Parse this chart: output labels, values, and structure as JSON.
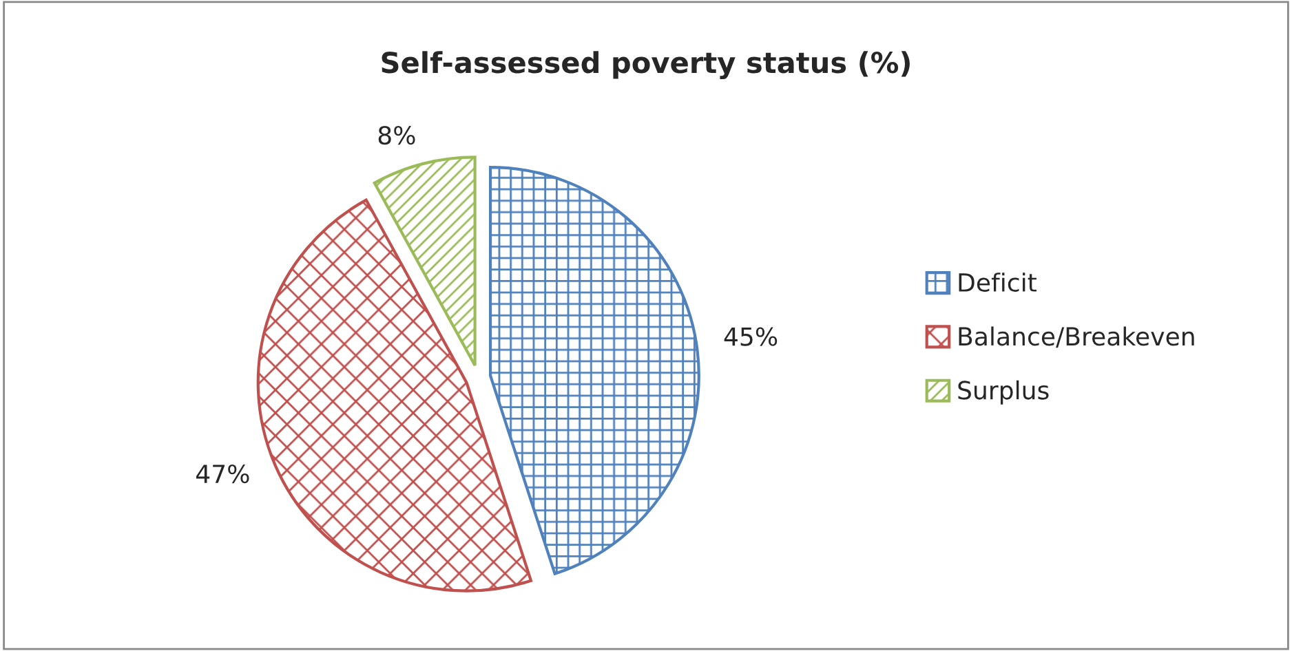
{
  "chart_data": {
    "type": "pie",
    "title": "Self-assessed poverty status (%)",
    "categories": [
      "Deficit",
      "Balance/Breakeven",
      "Surplus"
    ],
    "values": [
      45,
      47,
      8
    ],
    "colors": [
      "#4f81bd",
      "#c0504d",
      "#9bbb59"
    ],
    "value_labels": [
      "45%",
      "47%",
      "8%"
    ],
    "legend": "right"
  }
}
